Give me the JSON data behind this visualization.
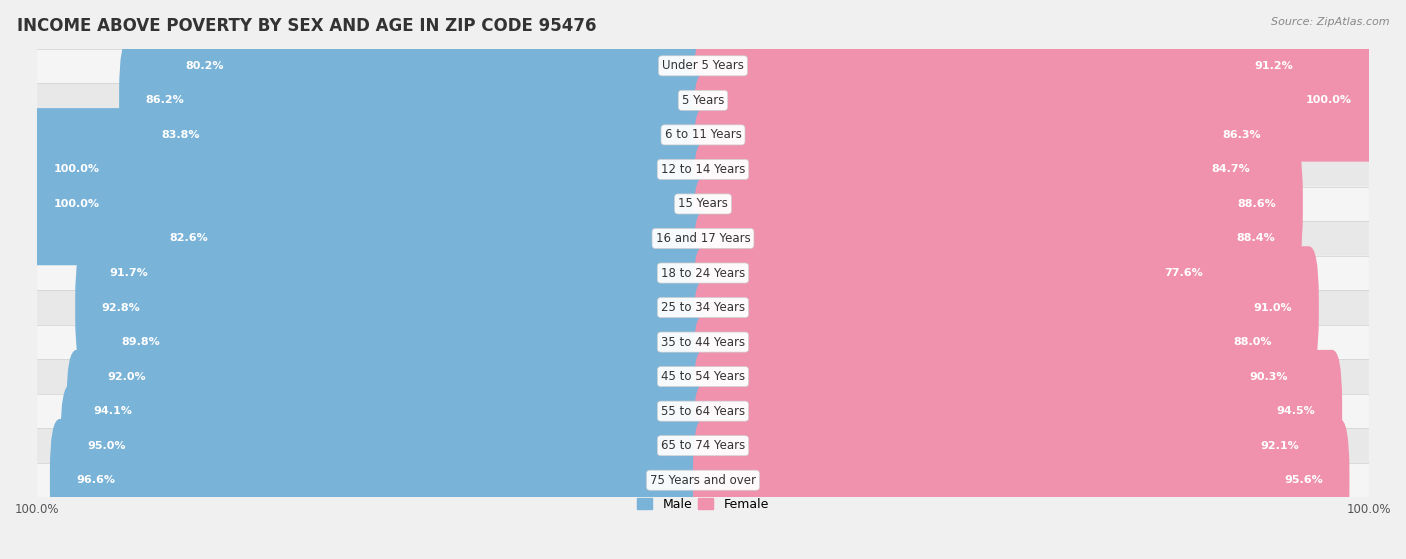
{
  "title": "INCOME ABOVE POVERTY BY SEX AND AGE IN ZIP CODE 95476",
  "source": "Source: ZipAtlas.com",
  "categories": [
    "Under 5 Years",
    "5 Years",
    "6 to 11 Years",
    "12 to 14 Years",
    "15 Years",
    "16 and 17 Years",
    "18 to 24 Years",
    "25 to 34 Years",
    "35 to 44 Years",
    "45 to 54 Years",
    "55 to 64 Years",
    "65 to 74 Years",
    "75 Years and over"
  ],
  "male_values": [
    80.2,
    86.2,
    83.8,
    100.0,
    100.0,
    82.6,
    91.7,
    92.8,
    89.8,
    92.0,
    94.1,
    95.0,
    96.6
  ],
  "female_values": [
    91.2,
    100.0,
    86.3,
    84.7,
    88.6,
    88.4,
    77.6,
    91.0,
    88.0,
    90.3,
    94.5,
    92.1,
    95.6
  ],
  "male_color": "#7ab3d8",
  "female_color": "#f092ae",
  "male_label": "Male",
  "female_label": "Female",
  "background_color": "#f0f0f0",
  "row_bg_odd": "#f5f5f5",
  "row_bg_even": "#e8e8e8",
  "label_color": "#ffffff",
  "title_fontsize": 12,
  "label_fontsize": 8,
  "category_fontsize": 8.5,
  "source_fontsize": 8
}
